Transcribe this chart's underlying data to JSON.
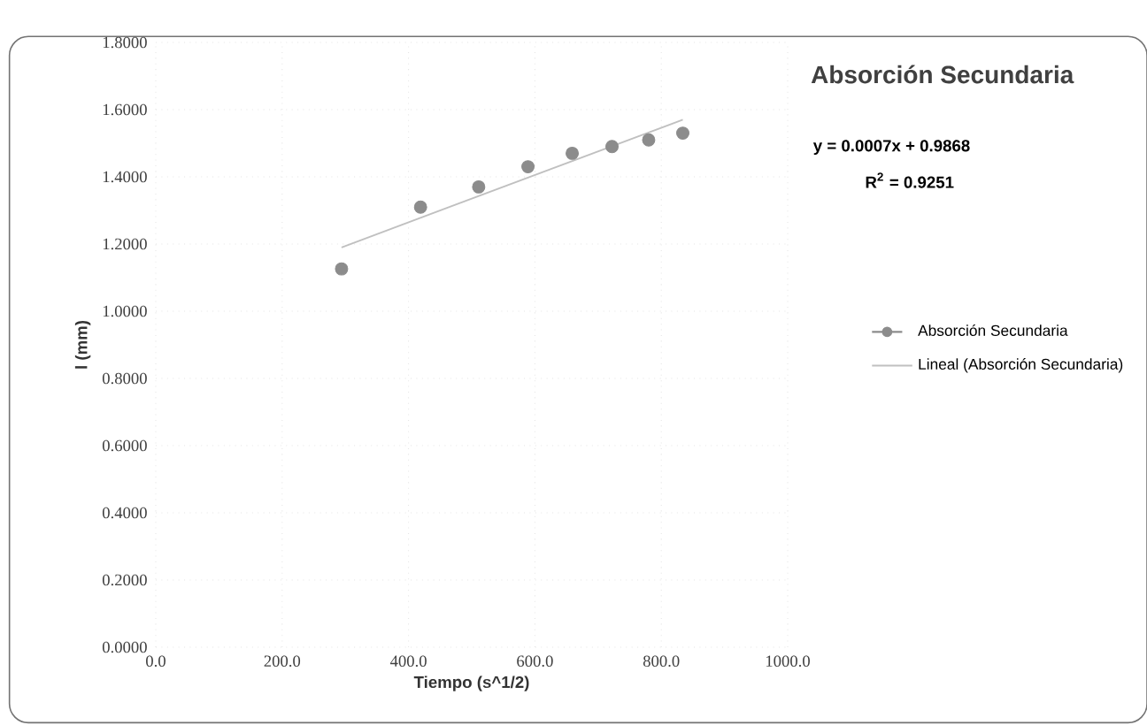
{
  "chart_data": {
    "type": "scatter",
    "title": "Absorción Secundaria",
    "xlabel": "Tiempo (s^1/2)",
    "ylabel": "l (mm)",
    "annotations": [
      "y = 0.0007x + 0.9868",
      "R$^{2}$ = 0.9251"
    ],
    "series": [
      {
        "name": "Absorción Secundaria",
        "color": "#8c8c8c",
        "marker": "circle",
        "x": [
          294,
          419,
          511,
          589,
          659,
          722,
          780,
          834
        ],
        "values": [
          1.126,
          1.31,
          1.37,
          1.43,
          1.47,
          1.49,
          1.51,
          1.53
        ]
      },
      {
        "name": "Lineal (Absorción Secundaria)",
        "type": "line",
        "color": "#c0c0c0",
        "line_style": "solid",
        "marker": "none",
        "x": [
          294,
          834
        ],
        "values": [
          1.19,
          1.57
        ]
      }
    ],
    "xlim": [
      0,
      1000
    ],
    "ylim": [
      0,
      1.8
    ],
    "xticks": [
      {
        "value": 0,
        "label": "0.0"
      },
      {
        "value": 200,
        "label": "200.0"
      },
      {
        "value": 400,
        "label": "400.0"
      },
      {
        "value": 600,
        "label": "600.0"
      },
      {
        "value": 800,
        "label": "800.0"
      },
      {
        "value": 1000,
        "label": "1000.0"
      }
    ],
    "yticks": [
      {
        "value": 0,
        "label": "0.0000"
      },
      {
        "value": 0.2,
        "label": "0.2000"
      },
      {
        "value": 0.4,
        "label": "0.4000"
      },
      {
        "value": 0.6,
        "label": "0.6000"
      },
      {
        "value": 0.8,
        "label": "0.8000"
      },
      {
        "value": 1.0,
        "label": "1.0000"
      },
      {
        "value": 1.2,
        "label": "1.2000"
      },
      {
        "value": 1.4,
        "label": "1.4000"
      },
      {
        "value": 1.6,
        "label": "1.6000"
      },
      {
        "value": 1.8,
        "label": "1.8000"
      }
    ],
    "grid": true,
    "legend": "right"
  }
}
